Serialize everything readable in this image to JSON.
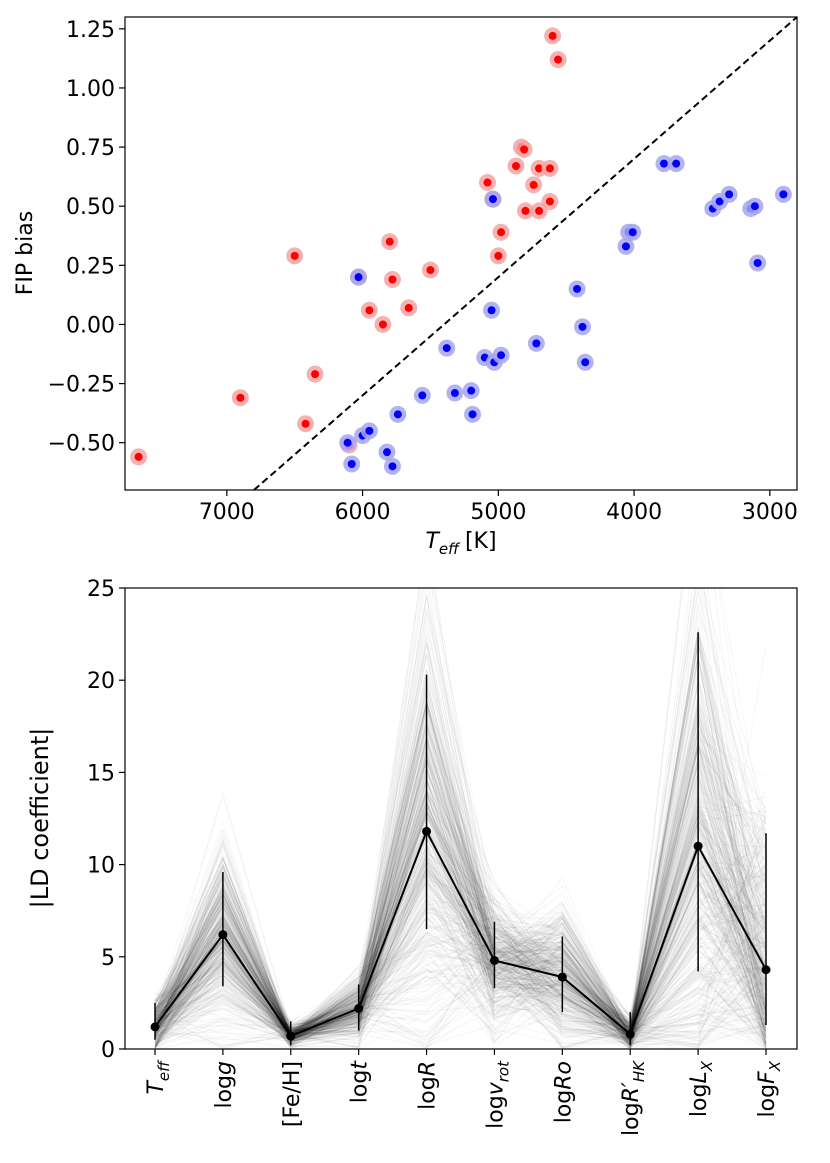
{
  "chart_data": [
    {
      "type": "scatter",
      "title": "",
      "xlabel_main": "T",
      "xlabel_sub": "eff",
      "xlabel_unit": "[K]",
      "ylabel": "FIP bias",
      "xlim": [
        7750,
        2800
      ],
      "ylim": [
        -0.7,
        1.3
      ],
      "xticks": [
        7000,
        6000,
        5000,
        4000,
        3000
      ],
      "yticks": [
        -0.5,
        -0.25,
        0.0,
        0.25,
        0.5,
        0.75,
        1.0,
        1.25
      ],
      "ytick_labels": [
        "−0.50",
        "−0.25",
        "0.00",
        "0.25",
        "0.50",
        "0.75",
        "1.00",
        "1.25"
      ],
      "reference_line": {
        "style": "dashed",
        "color": "#000000",
        "points": [
          [
            6800,
            -0.7
          ],
          [
            2800,
            1.3
          ]
        ]
      },
      "series": [
        {
          "name": "red",
          "color": "#ff0000",
          "halo_color": "#f5a3a3",
          "points": [
            [
              7650,
              -0.56
            ],
            [
              6900,
              -0.31
            ],
            [
              6500,
              0.29
            ],
            [
              6420,
              -0.42
            ],
            [
              6350,
              -0.21
            ],
            [
              6100,
              -0.51
            ],
            [
              6030,
              0.2
            ],
            [
              5950,
              0.06
            ],
            [
              5850,
              0.0
            ],
            [
              5800,
              0.35
            ],
            [
              5780,
              0.19
            ],
            [
              5660,
              0.07
            ],
            [
              5500,
              0.23
            ],
            [
              5080,
              0.6
            ],
            [
              5040,
              0.53
            ],
            [
              5000,
              0.29
            ],
            [
              4980,
              0.39
            ],
            [
              4870,
              0.67
            ],
            [
              4830,
              0.75
            ],
            [
              4810,
              0.74
            ],
            [
              4800,
              0.48
            ],
            [
              4740,
              0.59
            ],
            [
              4700,
              0.66
            ],
            [
              4700,
              0.48
            ],
            [
              4620,
              0.66
            ],
            [
              4620,
              0.52
            ],
            [
              4600,
              1.22
            ],
            [
              4560,
              1.12
            ]
          ]
        },
        {
          "name": "blue",
          "color": "#0000ff",
          "halo_color": "#a6a6f0",
          "points": [
            [
              6110,
              -0.5
            ],
            [
              6080,
              -0.59
            ],
            [
              6030,
              0.2
            ],
            [
              6000,
              -0.47
            ],
            [
              5950,
              -0.45
            ],
            [
              5820,
              -0.54
            ],
            [
              5780,
              -0.6
            ],
            [
              5740,
              -0.38
            ],
            [
              5560,
              -0.3
            ],
            [
              5380,
              -0.1
            ],
            [
              5320,
              -0.29
            ],
            [
              5200,
              -0.28
            ],
            [
              5190,
              -0.38
            ],
            [
              5100,
              -0.14
            ],
            [
              5050,
              0.06
            ],
            [
              5040,
              0.53
            ],
            [
              5030,
              -0.16
            ],
            [
              4980,
              -0.13
            ],
            [
              4720,
              -0.08
            ],
            [
              4420,
              0.15
            ],
            [
              4380,
              -0.01
            ],
            [
              4360,
              -0.16
            ],
            [
              4060,
              0.33
            ],
            [
              4040,
              0.39
            ],
            [
              4010,
              0.39
            ],
            [
              3780,
              0.68
            ],
            [
              3690,
              0.68
            ],
            [
              3420,
              0.49
            ],
            [
              3370,
              0.52
            ],
            [
              3300,
              0.55
            ],
            [
              3140,
              0.49
            ],
            [
              3110,
              0.5
            ],
            [
              3090,
              0.26
            ],
            [
              2900,
              0.55
            ]
          ]
        }
      ]
    },
    {
      "type": "line",
      "title": "",
      "xlabel": "",
      "ylabel": "|LD coefficient|",
      "ylim": [
        0,
        25
      ],
      "yticks": [
        0,
        5,
        10,
        15,
        20,
        25
      ],
      "categories": [
        {
          "main": "T",
          "sub": "eff",
          "prefix": ""
        },
        {
          "main": "g",
          "sub": "",
          "prefix": "log"
        },
        {
          "main": "[Fe/H]",
          "sub": "",
          "prefix": ""
        },
        {
          "main": "t",
          "sub": "",
          "prefix": "log"
        },
        {
          "main": "R",
          "sub": "",
          "prefix": "log"
        },
        {
          "main": "v",
          "sub": "rot",
          "prefix": "log"
        },
        {
          "main": "Ro",
          "sub": "",
          "prefix": "log"
        },
        {
          "main": "R′",
          "sub": "HK",
          "prefix": "log"
        },
        {
          "main": "L",
          "sub": "X",
          "prefix": "log"
        },
        {
          "main": "F",
          "sub": "X",
          "prefix": "log"
        }
      ],
      "mean_values": [
        1.2,
        6.2,
        0.7,
        2.2,
        11.8,
        4.8,
        3.9,
        0.8,
        11.0,
        4.3
      ],
      "error_low": [
        0.5,
        3.4,
        0.2,
        1.0,
        6.5,
        3.3,
        2.0,
        0.2,
        4.2,
        1.3
      ],
      "error_high": [
        2.5,
        9.6,
        1.5,
        3.5,
        20.3,
        6.9,
        6.1,
        2.0,
        22.6,
        11.7
      ],
      "background_traces": "many faint grey individual traces"
    }
  ]
}
